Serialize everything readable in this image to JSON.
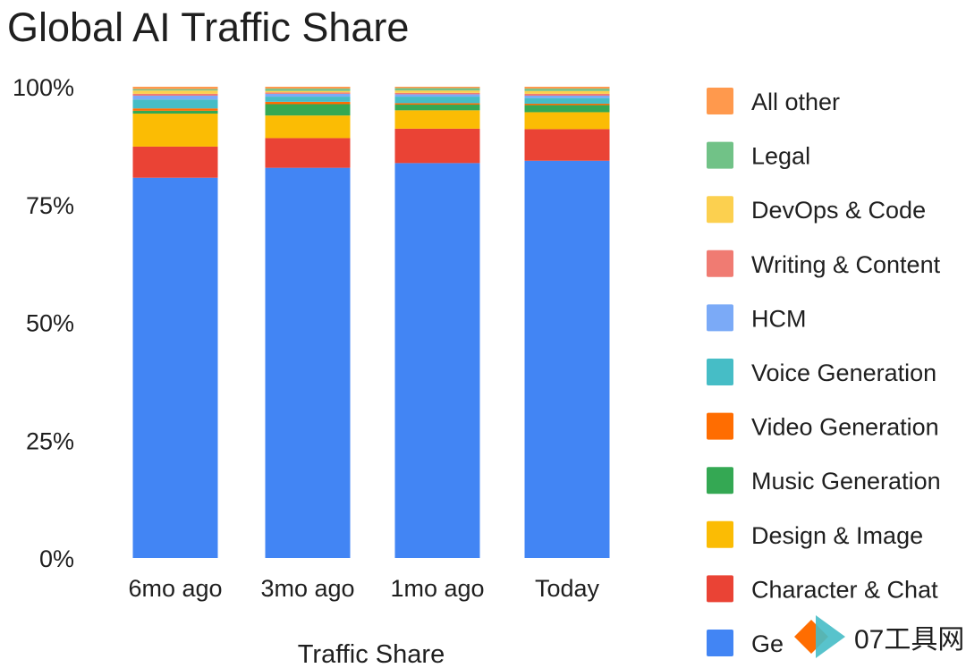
{
  "chart_data": {
    "type": "bar",
    "stacked": true,
    "title": "Global AI Traffic Share",
    "xlabel": "Traffic Share",
    "ylabel": "",
    "ylim": [
      0,
      100
    ],
    "yticks": [
      "0%",
      "25%",
      "50%",
      "75%",
      "100%"
    ],
    "ytick_values": [
      0,
      25,
      50,
      75,
      100
    ],
    "categories": [
      "6mo ago",
      "3mo ago",
      "1mo ago",
      "Today"
    ],
    "legend_position": "right",
    "grid": false,
    "series": [
      {
        "name": "Ge",
        "color": "#4285F4",
        "values": [
          80.7,
          82.8,
          83.8,
          84.3
        ]
      },
      {
        "name": "Character & Chat",
        "color": "#EA4335",
        "values": [
          6.6,
          6.3,
          7.3,
          6.7
        ]
      },
      {
        "name": "Design & Image",
        "color": "#FBBC04",
        "values": [
          7.0,
          4.8,
          3.9,
          3.6
        ]
      },
      {
        "name": "Music Generation",
        "color": "#34A853",
        "values": [
          0.6,
          2.4,
          1.2,
          1.5
        ]
      },
      {
        "name": "Video Generation",
        "color": "#FF6D01",
        "values": [
          0.5,
          0.5,
          0.3,
          0.3
        ]
      },
      {
        "name": "Voice Generation",
        "color": "#46BDC6",
        "values": [
          1.9,
          1.1,
          1.4,
          1.2
        ]
      },
      {
        "name": "HCM",
        "color": "#7BAAF7",
        "values": [
          0.8,
          0.6,
          0.5,
          0.5
        ]
      },
      {
        "name": "Writing & Content",
        "color": "#F07B72",
        "values": [
          0.4,
          0.3,
          0.3,
          0.4
        ]
      },
      {
        "name": "DevOps & Code",
        "color": "#FCD04F",
        "values": [
          0.7,
          0.3,
          0.5,
          0.6
        ]
      },
      {
        "name": "Legal",
        "color": "#71C287",
        "values": [
          0.3,
          0.5,
          0.5,
          0.5
        ]
      },
      {
        "name": "All other",
        "color": "#FF994D",
        "values": [
          0.5,
          0.4,
          0.3,
          0.4
        ]
      }
    ]
  },
  "watermark": {
    "text": "07工具网",
    "colors": [
      "#FF6D01",
      "#46BDC6"
    ]
  }
}
